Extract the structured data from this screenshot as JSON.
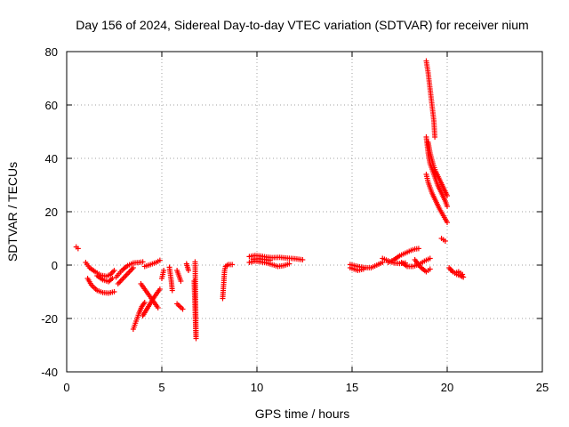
{
  "chart_data": {
    "type": "scatter",
    "title": "Day 156 of 2024, Sidereal Day-to-day VTEC variation (SDTVAR) for receiver nium",
    "xlabel": "GPS time / hours",
    "ylabel": "SDTVAR / TECUs",
    "xlim": [
      0,
      25
    ],
    "ylim": [
      -40,
      80
    ],
    "xticks": [
      0,
      5,
      10,
      15,
      20,
      25
    ],
    "yticks": [
      -40,
      -20,
      0,
      20,
      40,
      60,
      80
    ],
    "grid": true,
    "marker": "plus",
    "color": "#ff0000",
    "series": [
      {
        "name": "SDTVAR",
        "segments": [
          [
            [
              0.5,
              6.8
            ],
            [
              0.6,
              6.2
            ]
          ],
          [
            [
              1.0,
              1.0
            ],
            [
              1.2,
              -1.0
            ],
            [
              1.5,
              -2.5
            ],
            [
              1.8,
              -3.8
            ],
            [
              2.1,
              -4.2
            ],
            [
              2.3,
              -3.5
            ],
            [
              2.5,
              -2.0
            ]
          ],
          [
            [
              1.1,
              -5.0
            ],
            [
              1.3,
              -7.5
            ],
            [
              1.6,
              -9.5
            ],
            [
              1.9,
              -10.3
            ],
            [
              2.2,
              -10.5
            ],
            [
              2.5,
              -10.0
            ]
          ],
          [
            [
              1.6,
              -4.0
            ],
            [
              1.9,
              -5.5
            ],
            [
              2.2,
              -6.2
            ],
            [
              2.4,
              -5.0
            ]
          ],
          [
            [
              2.6,
              -4.5
            ],
            [
              2.9,
              -2.0
            ],
            [
              3.2,
              -0.2
            ],
            [
              3.5,
              0.8
            ],
            [
              3.8,
              1.0
            ],
            [
              4.0,
              1.2
            ]
          ],
          [
            [
              2.7,
              -7.0
            ],
            [
              2.9,
              -5.5
            ],
            [
              3.1,
              -4.0
            ],
            [
              3.3,
              -2.5
            ],
            [
              3.5,
              -1.0
            ]
          ],
          [
            [
              3.5,
              -24.0
            ],
            [
              3.65,
              -21.0
            ],
            [
              3.8,
              -18.0
            ],
            [
              3.95,
              -15.5
            ],
            [
              4.1,
              -14.0
            ]
          ],
          [
            [
              3.9,
              -7.0
            ],
            [
              4.2,
              -10.0
            ],
            [
              4.5,
              -13.0
            ],
            [
              4.8,
              -16.0
            ]
          ],
          [
            [
              4.0,
              -19.0
            ],
            [
              4.3,
              -15.5
            ],
            [
              4.6,
              -12.0
            ],
            [
              4.9,
              -9.0
            ]
          ],
          [
            [
              4.1,
              -0.5
            ],
            [
              4.4,
              0.2
            ],
            [
              4.7,
              1.0
            ],
            [
              4.9,
              1.8
            ]
          ],
          [
            [
              5.0,
              -5.0
            ],
            [
              5.1,
              -2.0
            ]
          ],
          [
            [
              5.4,
              -0.8
            ],
            [
              5.5,
              -6.0
            ],
            [
              5.55,
              -9.5
            ]
          ],
          [
            [
              5.8,
              -14.5
            ],
            [
              5.95,
              -15.5
            ],
            [
              6.1,
              -16.5
            ]
          ],
          [
            [
              5.8,
              -2.0
            ],
            [
              5.9,
              -4.0
            ],
            [
              6.0,
              -6.0
            ]
          ],
          [
            [
              6.3,
              0.5
            ],
            [
              6.4,
              -2.0
            ]
          ],
          [
            [
              6.7,
              -6.0
            ],
            [
              6.8,
              -27.5
            ],
            [
              6.75,
              1.2
            ]
          ],
          [
            [
              8.2,
              -12.5
            ],
            [
              8.3,
              -2.0
            ],
            [
              8.35,
              -0.5
            ],
            [
              8.5,
              0.2
            ],
            [
              8.7,
              0.2
            ]
          ],
          [
            [
              9.6,
              3.2
            ],
            [
              9.9,
              3.6
            ],
            [
              10.2,
              3.4
            ],
            [
              10.5,
              3.0
            ],
            [
              10.8,
              2.8
            ],
            [
              11.2,
              2.9
            ],
            [
              11.6,
              2.6
            ],
            [
              12.0,
              2.4
            ],
            [
              12.4,
              2.0
            ]
          ],
          [
            [
              9.6,
              1.0
            ],
            [
              9.9,
              1.5
            ],
            [
              10.2,
              1.2
            ],
            [
              10.5,
              0.8
            ],
            [
              10.8,
              0.2
            ],
            [
              11.1,
              -0.5
            ],
            [
              11.4,
              -0.2
            ],
            [
              11.7,
              0.5
            ]
          ],
          [
            [
              9.8,
              2.2
            ],
            [
              10.1,
              2.4
            ],
            [
              10.4,
              2.1
            ],
            [
              10.7,
              1.8
            ]
          ],
          [
            [
              14.9,
              0.2
            ],
            [
              15.3,
              -0.5
            ],
            [
              15.7,
              -1.0
            ],
            [
              16.0,
              -1.0
            ],
            [
              16.3,
              0.0
            ],
            [
              16.6,
              1.0
            ]
          ],
          [
            [
              14.9,
              -1.0
            ],
            [
              15.3,
              -2.0
            ],
            [
              15.6,
              -1.5
            ]
          ],
          [
            [
              16.6,
              2.5
            ],
            [
              16.9,
              1.6
            ],
            [
              17.2,
              0.8
            ],
            [
              17.5,
              0.6
            ],
            [
              17.8,
              0.8
            ]
          ],
          [
            [
              16.9,
              1.0
            ],
            [
              17.2,
              2.0
            ],
            [
              17.5,
              3.5
            ],
            [
              17.8,
              4.5
            ],
            [
              18.1,
              5.5
            ],
            [
              18.3,
              6.0
            ],
            [
              18.5,
              6.2
            ]
          ],
          [
            [
              17.6,
              1.0
            ],
            [
              17.9,
              -0.5
            ],
            [
              18.2,
              -0.5
            ],
            [
              18.5,
              0.2
            ],
            [
              18.8,
              1.5
            ],
            [
              19.1,
              2.5
            ]
          ],
          [
            [
              18.3,
              2.0
            ],
            [
              18.6,
              -0.8
            ],
            [
              18.9,
              -2.5
            ],
            [
              19.1,
              -1.5
            ]
          ],
          [
            [
              18.9,
              76.5
            ],
            [
              19.0,
              72.0
            ],
            [
              19.1,
              66.0
            ],
            [
              19.2,
              60.0
            ],
            [
              19.3,
              54.0
            ],
            [
              19.35,
              48.0
            ]
          ],
          [
            [
              18.9,
              48.0
            ],
            [
              19.0,
              42.0
            ],
            [
              19.1,
              38.0
            ],
            [
              19.3,
              34.0
            ],
            [
              19.5,
              30.0
            ],
            [
              19.7,
              27.0
            ],
            [
              19.9,
              24.0
            ],
            [
              20.0,
              22.0
            ]
          ],
          [
            [
              19.0,
              46.0
            ],
            [
              19.1,
              42.0
            ],
            [
              19.25,
              38.0
            ],
            [
              19.4,
              35.0
            ],
            [
              19.6,
              32.0
            ],
            [
              19.8,
              29.0
            ],
            [
              20.0,
              26.0
            ]
          ],
          [
            [
              18.9,
              34.0
            ],
            [
              19.0,
              31.0
            ],
            [
              19.2,
              27.0
            ],
            [
              19.4,
              24.0
            ],
            [
              19.6,
              21.0
            ],
            [
              19.8,
              18.5
            ],
            [
              20.0,
              16.0
            ]
          ],
          [
            [
              19.7,
              10.0
            ],
            [
              19.9,
              9.0
            ]
          ],
          [
            [
              20.1,
              -1.0
            ],
            [
              20.3,
              -2.5
            ],
            [
              20.5,
              -3.5
            ],
            [
              20.7,
              -4.0
            ],
            [
              20.85,
              -4.5
            ]
          ],
          [
            [
              20.2,
              -2.0
            ],
            [
              20.4,
              -3.0
            ],
            [
              20.6,
              -2.5
            ],
            [
              20.8,
              -3.5
            ]
          ]
        ]
      }
    ]
  }
}
